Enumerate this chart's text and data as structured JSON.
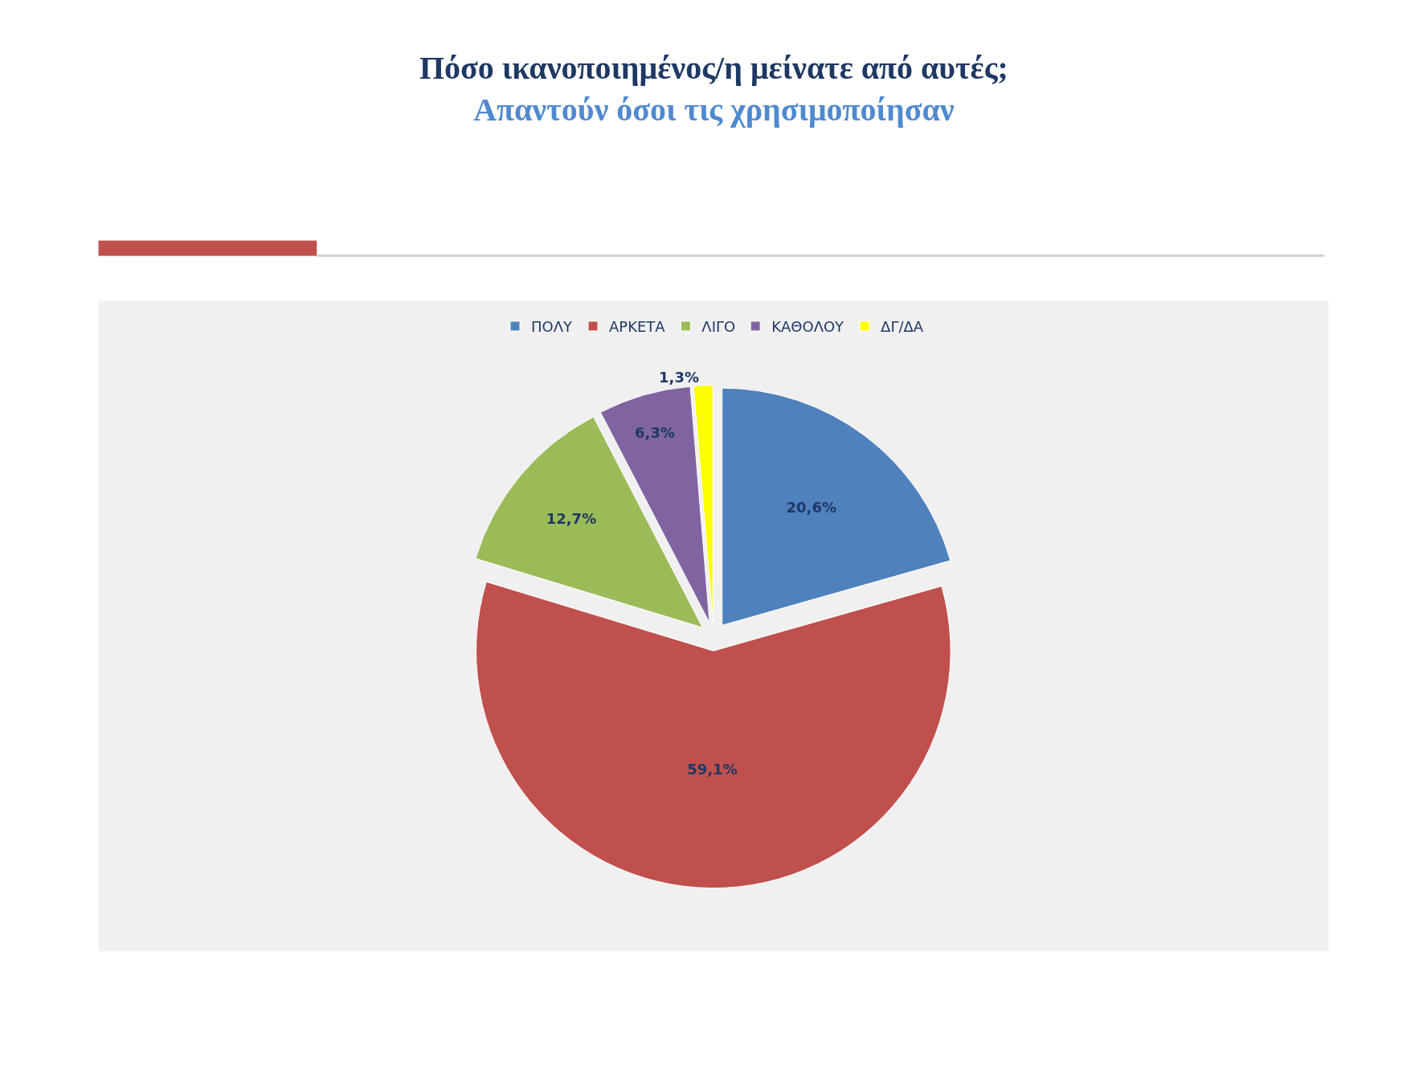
{
  "chart_data": {
    "type": "pie",
    "title": "Πόσο ικανοποιημένος/η μείνατε από αυτές;",
    "subtitle": "Απαντούν όσοι τις χρησιμοποίησαν",
    "categories": [
      "ΠΟΛΥ",
      "ΑΡΚΕΤΑ",
      "ΛΙΓΟ",
      "ΚΑΘΟΛΟΥ",
      "ΔΓ/ΔΑ"
    ],
    "values": [
      20.6,
      59.1,
      12.7,
      6.3,
      1.3
    ],
    "value_labels": [
      "20,6%",
      "59,1%",
      "12,7%",
      "6,3%",
      "1,3%"
    ],
    "colors": [
      "#4f81bd",
      "#c0504d",
      "#9bbb59",
      "#8064a2",
      "#ffff00"
    ],
    "legend": "top"
  }
}
